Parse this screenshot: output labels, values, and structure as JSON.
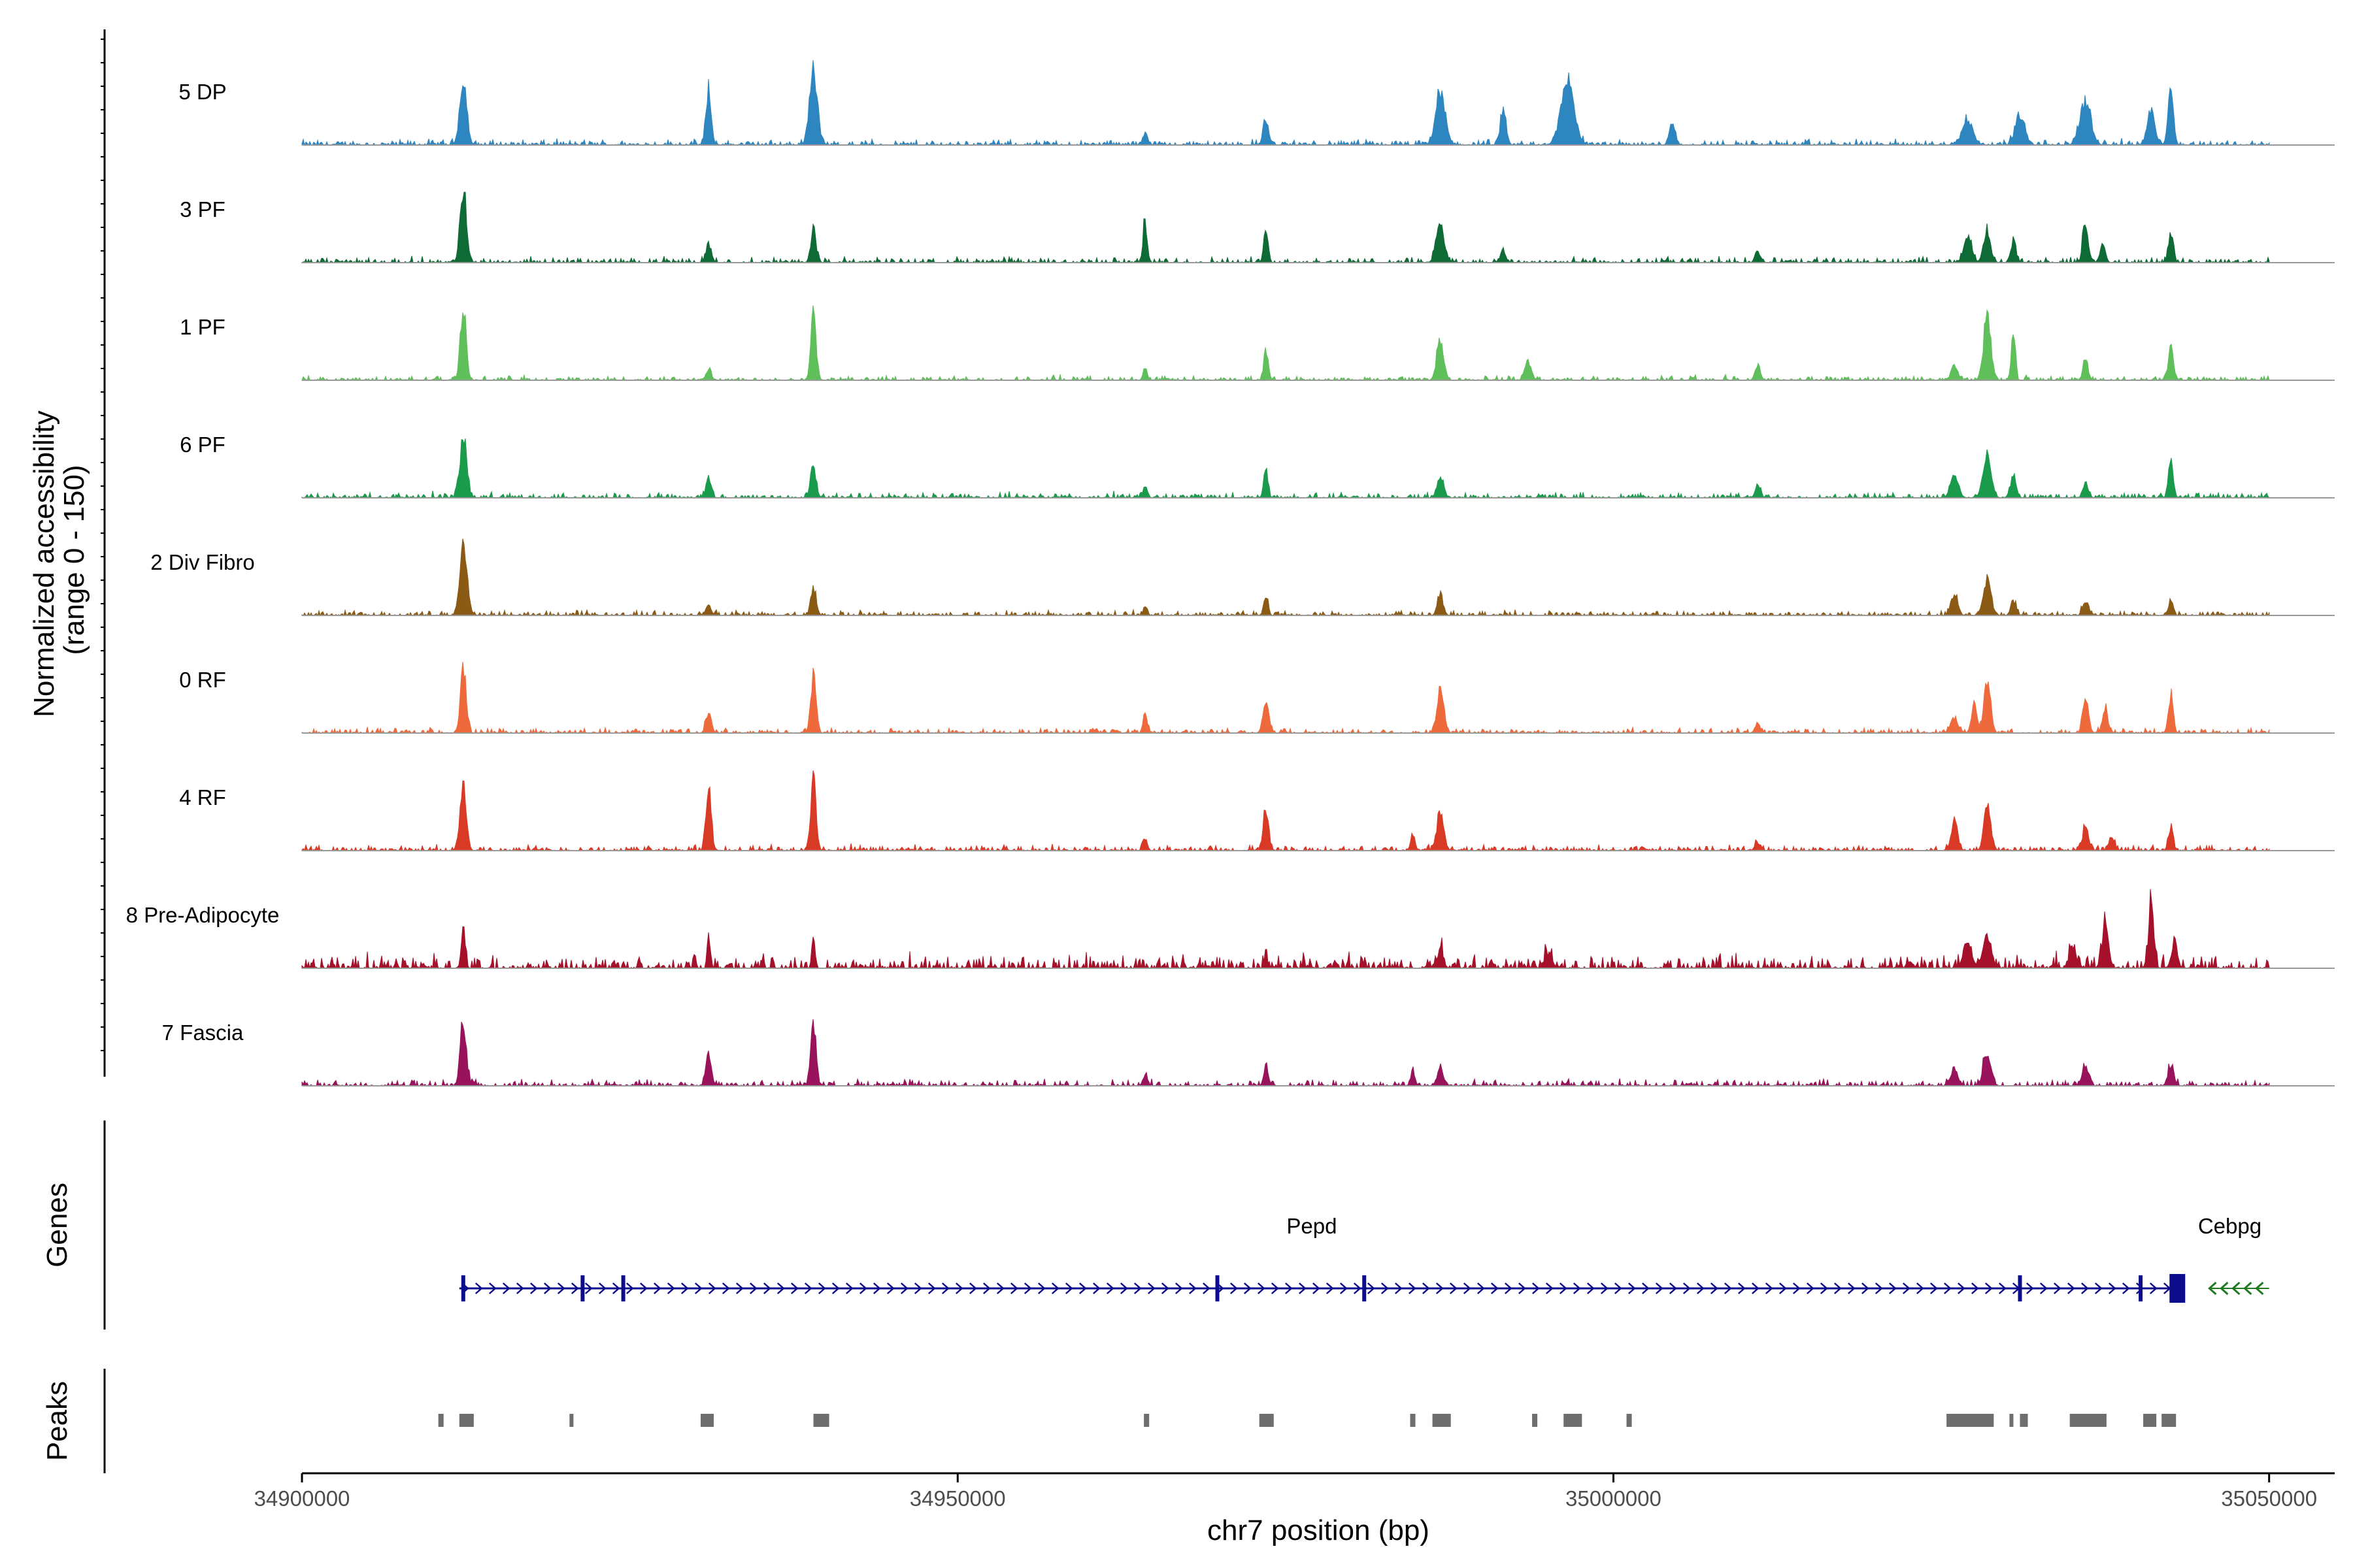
{
  "chart_data": {
    "type": "area",
    "title": "",
    "xlabel": "chr7 position (bp)",
    "ylabel": "Normalized accessibility\n(range 0 - 150)",
    "y_range": [
      0,
      150
    ],
    "x_range": [
      34900000,
      35055000
    ],
    "x_ticks": [
      34900000,
      34950000,
      35000000,
      35050000
    ],
    "x_tick_labels": [
      "34900000",
      "34950000",
      "35000000",
      "35050000"
    ],
    "track_start": 34900000,
    "track_end": 35050000,
    "panel_labels": {
      "genes": "Genes",
      "peaks": "Peaks"
    },
    "series": [
      {
        "name": "5 DP",
        "color": "#2e86c1",
        "noise": 0.022,
        "peaks": [
          [
            34912300,
            0.95,
            260
          ],
          [
            34931000,
            0.75,
            200
          ],
          [
            34939000,
            1.0,
            300
          ],
          [
            34964300,
            0.15,
            200
          ],
          [
            34973500,
            0.35,
            200
          ],
          [
            34986800,
            0.75,
            350
          ],
          [
            34991600,
            0.45,
            220
          ],
          [
            34996500,
            0.85,
            500
          ],
          [
            35004500,
            0.3,
            220
          ],
          [
            35027000,
            0.35,
            400
          ],
          [
            35031000,
            0.4,
            350
          ],
          [
            35036000,
            0.6,
            400
          ],
          [
            35041000,
            0.45,
            300
          ],
          [
            35042500,
            0.85,
            200
          ]
        ]
      },
      {
        "name": "3 PF",
        "color": "#0f6b35",
        "noise": 0.022,
        "peaks": [
          [
            34912300,
            1.0,
            230
          ],
          [
            34931000,
            0.25,
            200
          ],
          [
            34939000,
            0.45,
            200
          ],
          [
            34964300,
            0.55,
            160
          ],
          [
            34973500,
            0.45,
            160
          ],
          [
            34986800,
            0.55,
            300
          ],
          [
            34991600,
            0.15,
            200
          ],
          [
            35011000,
            0.15,
            200
          ],
          [
            35027000,
            0.35,
            300
          ],
          [
            35028500,
            0.45,
            250
          ],
          [
            35030500,
            0.3,
            200
          ],
          [
            35036000,
            0.55,
            200
          ],
          [
            35037300,
            0.25,
            200
          ],
          [
            35042500,
            0.4,
            180
          ]
        ]
      },
      {
        "name": "1 PF",
        "color": "#5fbf5a",
        "noise": 0.018,
        "peaks": [
          [
            34912300,
            1.0,
            220
          ],
          [
            34931000,
            0.15,
            200
          ],
          [
            34939000,
            0.9,
            200
          ],
          [
            34964300,
            0.15,
            160
          ],
          [
            34973500,
            0.4,
            160
          ],
          [
            34986800,
            0.55,
            260
          ],
          [
            34993500,
            0.25,
            250
          ],
          [
            35011000,
            0.2,
            200
          ],
          [
            35026000,
            0.2,
            250
          ],
          [
            35028500,
            0.85,
            280
          ],
          [
            35030500,
            0.75,
            140
          ],
          [
            35036000,
            0.25,
            200
          ],
          [
            35042500,
            0.5,
            180
          ]
        ]
      },
      {
        "name": "6 PF",
        "color": "#1a9a4b",
        "noise": 0.022,
        "peaks": [
          [
            34912300,
            0.85,
            250
          ],
          [
            34931000,
            0.25,
            200
          ],
          [
            34939000,
            0.45,
            200
          ],
          [
            34964300,
            0.15,
            160
          ],
          [
            34973500,
            0.4,
            160
          ],
          [
            34986800,
            0.25,
            260
          ],
          [
            35011000,
            0.15,
            200
          ],
          [
            35026000,
            0.3,
            300
          ],
          [
            35028500,
            0.55,
            300
          ],
          [
            35030500,
            0.3,
            200
          ],
          [
            35036000,
            0.2,
            200
          ],
          [
            35042500,
            0.5,
            180
          ]
        ]
      },
      {
        "name": "2 Div Fibro",
        "color": "#8b5a14",
        "noise": 0.02,
        "peaks": [
          [
            34912300,
            0.95,
            270
          ],
          [
            34931000,
            0.15,
            200
          ],
          [
            34939000,
            0.38,
            200
          ],
          [
            34964300,
            0.1,
            160
          ],
          [
            34973500,
            0.25,
            160
          ],
          [
            34986800,
            0.28,
            220
          ],
          [
            35026000,
            0.3,
            250
          ],
          [
            35028500,
            0.45,
            300
          ],
          [
            35030500,
            0.2,
            200
          ],
          [
            35036000,
            0.2,
            200
          ],
          [
            35042500,
            0.2,
            180
          ]
        ]
      },
      {
        "name": "0 RF",
        "color": "#ee6a3c",
        "noise": 0.02,
        "peaks": [
          [
            34912300,
            0.85,
            220
          ],
          [
            34931000,
            0.28,
            200
          ],
          [
            34939000,
            0.8,
            200
          ],
          [
            34964300,
            0.28,
            160
          ],
          [
            34973500,
            0.45,
            220
          ],
          [
            34986800,
            0.6,
            250
          ],
          [
            35011000,
            0.12,
            200
          ],
          [
            35026000,
            0.2,
            300
          ],
          [
            35027500,
            0.4,
            200
          ],
          [
            35028500,
            0.75,
            250
          ],
          [
            35036000,
            0.45,
            220
          ],
          [
            35037500,
            0.35,
            200
          ],
          [
            35042500,
            0.5,
            180
          ]
        ]
      },
      {
        "name": "4 RF",
        "color": "#d93a26",
        "noise": 0.022,
        "peaks": [
          [
            34912300,
            1.0,
            230
          ],
          [
            34931000,
            0.85,
            200
          ],
          [
            34939000,
            0.95,
            200
          ],
          [
            34964300,
            0.15,
            160
          ],
          [
            34973500,
            0.6,
            200
          ],
          [
            34984700,
            0.2,
            160
          ],
          [
            34986800,
            0.55,
            250
          ],
          [
            35011000,
            0.1,
            200
          ],
          [
            35026000,
            0.4,
            250
          ],
          [
            35028500,
            0.65,
            250
          ],
          [
            35036000,
            0.35,
            220
          ],
          [
            35038000,
            0.2,
            200
          ],
          [
            35042500,
            0.3,
            180
          ]
        ]
      },
      {
        "name": "8 Pre-Adipocyte",
        "color": "#a5102a",
        "noise": 0.055,
        "peaks": [
          [
            34912300,
            0.55,
            150
          ],
          [
            34931000,
            0.5,
            100
          ],
          [
            34939000,
            0.45,
            120
          ],
          [
            34973500,
            0.15,
            140
          ],
          [
            34986800,
            0.25,
            220
          ],
          [
            34995000,
            0.18,
            300
          ],
          [
            35027000,
            0.35,
            300
          ],
          [
            35028500,
            0.45,
            300
          ],
          [
            35035000,
            0.3,
            250
          ],
          [
            35037500,
            0.55,
            250
          ],
          [
            35041000,
            0.85,
            200
          ],
          [
            35042800,
            0.4,
            200
          ]
        ]
      },
      {
        "name": "7 Fascia",
        "color": "#98135b",
        "noise": 0.025,
        "peaks": [
          [
            34912300,
            0.85,
            230
          ],
          [
            34931000,
            0.45,
            200
          ],
          [
            34939000,
            0.9,
            200
          ],
          [
            34964300,
            0.15,
            160
          ],
          [
            34973500,
            0.28,
            160
          ],
          [
            34984700,
            0.2,
            160
          ],
          [
            34986800,
            0.25,
            220
          ],
          [
            35026000,
            0.25,
            250
          ],
          [
            35028500,
            0.45,
            280
          ],
          [
            35036000,
            0.25,
            250
          ],
          [
            35042500,
            0.25,
            220
          ]
        ]
      }
    ],
    "genes": [
      {
        "name": "Pepd",
        "color": "#0d0d8c",
        "start": 34912000,
        "end": 35043500,
        "strand": "+",
        "exons": [
          34912300,
          34921400,
          34924500,
          34969800,
          34981000,
          35031000,
          35040200,
          35042700,
          35043200
        ]
      },
      {
        "name": "Cebpg",
        "color": "#1f7a1f",
        "start": 35045000,
        "end": 35050000,
        "strand": "-",
        "exons": []
      }
    ],
    "peak_regions": [
      [
        34910400,
        34910800
      ],
      [
        34912000,
        34913100
      ],
      [
        34920400,
        34920700
      ],
      [
        34930400,
        34931400
      ],
      [
        34939000,
        34940200
      ],
      [
        34964200,
        34964600
      ],
      [
        34973000,
        34974100
      ],
      [
        34984500,
        34984900
      ],
      [
        34986200,
        34987600
      ],
      [
        34993800,
        34994200
      ],
      [
        34996200,
        34997600
      ],
      [
        35001000,
        35001400
      ],
      [
        35025400,
        35029000
      ],
      [
        35030200,
        35030500
      ],
      [
        35031000,
        35031600
      ],
      [
        35034800,
        35037600
      ],
      [
        35040400,
        35041400
      ],
      [
        35041800,
        35042900
      ]
    ]
  }
}
